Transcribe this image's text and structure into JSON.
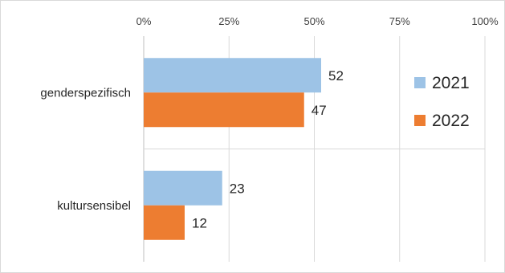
{
  "chart_data": {
    "type": "bar",
    "orientation": "horizontal",
    "title": "",
    "xlabel": "",
    "ylabel": "",
    "categories": [
      "genderspezifisch",
      "kultursensibel"
    ],
    "series": [
      {
        "name": "2021",
        "values": [
          52,
          23
        ],
        "color": "#9DC3E6"
      },
      {
        "name": "2022",
        "values": [
          47,
          12
        ],
        "color": "#ED7D31"
      }
    ],
    "xlim": [
      0,
      100
    ],
    "x_ticks": [
      0,
      25,
      50,
      75,
      100
    ],
    "x_tick_labels": [
      "0%",
      "25%",
      "50%",
      "75%",
      "100%"
    ],
    "axis_position": "top",
    "grid": true,
    "legend_position": "right",
    "data_labels": true
  }
}
